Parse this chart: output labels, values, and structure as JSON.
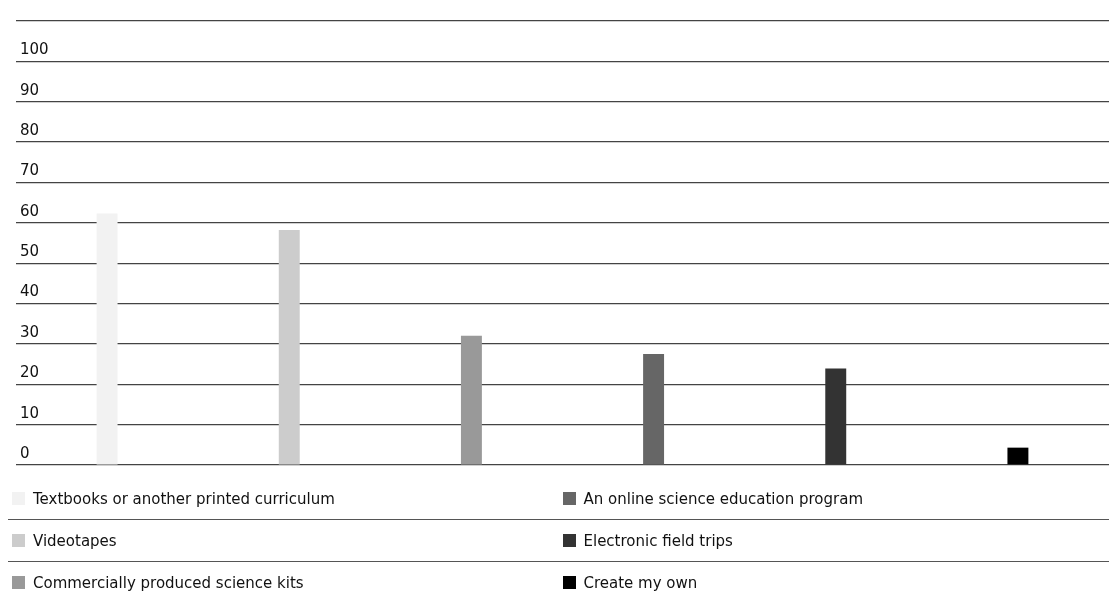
{
  "chart_data": {
    "type": "bar",
    "categories": [
      null
    ],
    "series": [
      {
        "name": "Textbooks or another printed curriculum",
        "color": "#f2f2f2",
        "values": [
          62.3
        ]
      },
      {
        "name": "Videotapes",
        "color": "#cccccc",
        "values": [
          58.2
        ]
      },
      {
        "name": "Commercially produced science kits",
        "color": "#999999",
        "values": [
          32
        ]
      },
      {
        "name": "An online science education program",
        "color": "#666666",
        "values": [
          27.5
        ]
      },
      {
        "name": "Electronic field trips",
        "color": "#333333",
        "values": [
          23.9
        ]
      },
      {
        "name": "Create my own",
        "color": "#000000",
        "values": [
          4.3
        ]
      }
    ],
    "ylim": [
      0,
      110
    ],
    "yticks": [
      0,
      10,
      20,
      30,
      40,
      50,
      60,
      70,
      80,
      90,
      100,
      {
        "value": 110,
        "label": null
      }
    ],
    "tick_labels": "y",
    "grid": "y",
    "legend": "bottom"
  }
}
